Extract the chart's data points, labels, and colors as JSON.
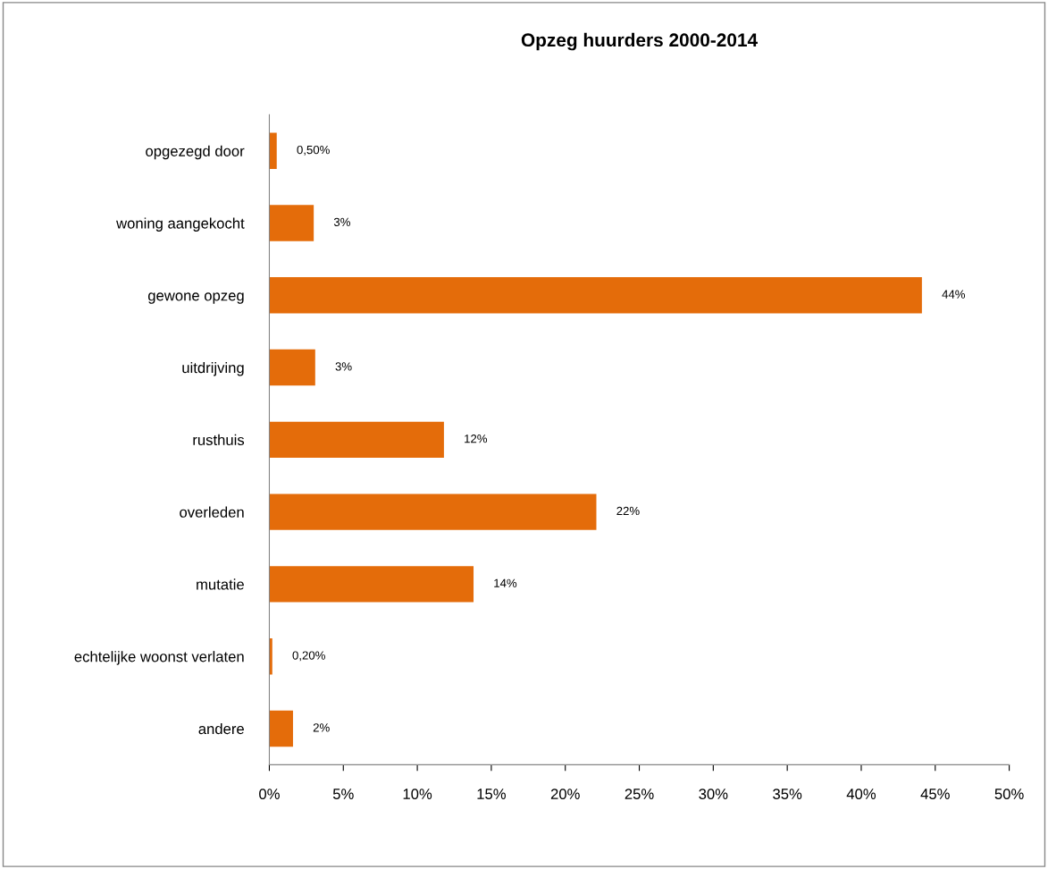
{
  "chart_data": {
    "type": "bar",
    "orientation": "horizontal",
    "title": "Opzeg huurders 2000-2014",
    "categories": [
      "opgezegd door",
      "woning aangekocht",
      "gewone opzeg",
      "uitdrijving",
      "rusthuis",
      "overleden",
      "mutatie",
      "echtelijke woonst verlaten",
      "andere"
    ],
    "values": [
      0.5,
      3.0,
      44.1,
      3.1,
      11.8,
      22.1,
      13.8,
      0.2,
      1.6
    ],
    "value_labels": [
      "0,50%",
      "3%",
      "44%",
      "3%",
      "12%",
      "22%",
      "14%",
      "0,20%",
      "2%"
    ],
    "color": "#e46c0a",
    "xlim": [
      0,
      50
    ],
    "xticks": [
      {
        "value": 0,
        "label": "0%"
      },
      {
        "value": 5,
        "label": "5%"
      },
      {
        "value": 10,
        "label": "10%"
      },
      {
        "value": 15,
        "label": "15%"
      },
      {
        "value": 20,
        "label": "20%"
      },
      {
        "value": 25,
        "label": "25%"
      },
      {
        "value": 30,
        "label": "30%"
      },
      {
        "value": 35,
        "label": "35%"
      },
      {
        "value": 40,
        "label": "40%"
      },
      {
        "value": 45,
        "label": "45%"
      },
      {
        "value": 50,
        "label": "50%"
      }
    ],
    "grid": false,
    "legend": false
  }
}
